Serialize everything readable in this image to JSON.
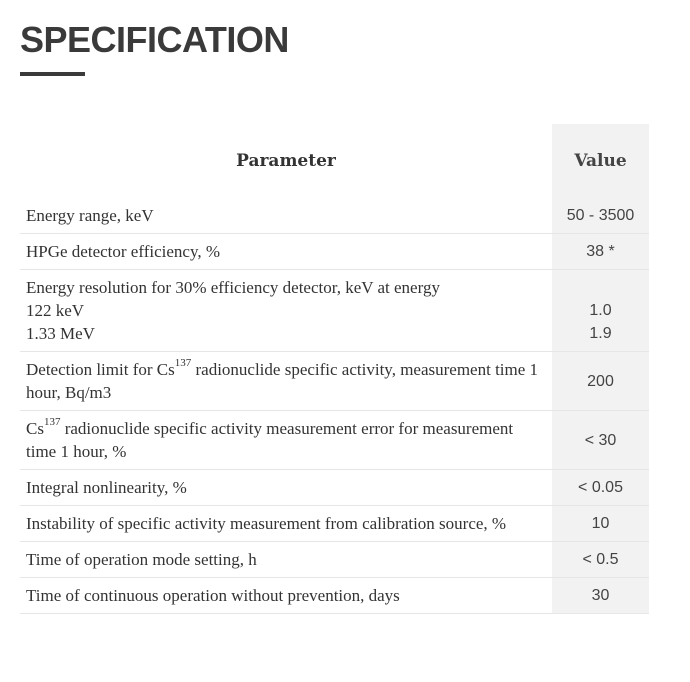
{
  "page": {
    "title": "SPECIFICATION"
  },
  "table": {
    "headers": {
      "parameter": "Parameter",
      "value": "Value"
    },
    "rows": [
      {
        "parameter": "Energy range, keV",
        "value": "50 - 3500"
      },
      {
        "parameter": "HPGe detector efficiency, %",
        "value": "38 *"
      },
      {
        "parameter": "Energy resolution for 30% efficiency detector, keV at energy",
        "sub1": "122 keV",
        "sub2": "1.33 MeV",
        "value1": "1.0",
        "value2": "1.9"
      },
      {
        "parameter_prefix": "Detection limit for Cs",
        "parameter_sup": "137",
        "parameter_suffix": " radionuclide specific activity, measurement time 1 hour, Bq/m3",
        "value": "200"
      },
      {
        "parameter_prefix": "Cs",
        "parameter_sup": "137",
        "parameter_suffix": " radionuclide specific activity measurement error for measurement time 1 hour, %",
        "value": "< 30"
      },
      {
        "parameter": "Integral nonlinearity, %",
        "value": "< 0.05"
      },
      {
        "parameter": "Instability of specific activity measurement from calibration source, %",
        "value": "10"
      },
      {
        "parameter": "Time of operation mode setting, h",
        "value": "< 0.5"
      },
      {
        "parameter": "Time of continuous operation without prevention, days",
        "value": "30"
      }
    ]
  }
}
